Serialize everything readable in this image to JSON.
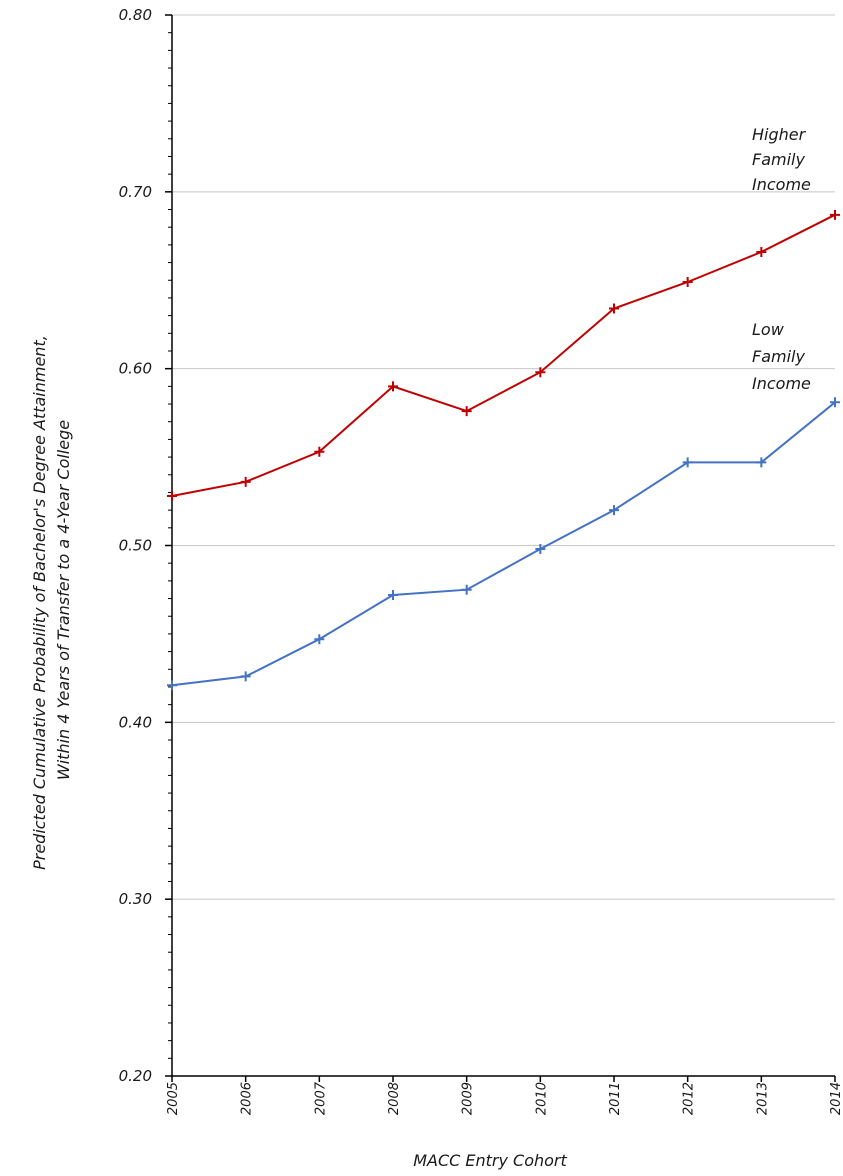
{
  "chart_data": {
    "type": "line",
    "xlabel": "MACC Entry Cohort",
    "ylabel_lines": [
      "Predicted Cumulative Probability of Bachelor's Degree Attainment,",
      "Within 4 Years of Transfer to a 4-Year College"
    ],
    "x": [
      "2005",
      "2006",
      "2007",
      "2008",
      "2009",
      "2010",
      "2011",
      "2012",
      "2013",
      "2014"
    ],
    "yticks": [
      "0.20",
      "0.30",
      "0.40",
      "0.50",
      "0.60",
      "0.70",
      "0.80"
    ],
    "ylim": [
      0.2,
      0.8
    ],
    "grid": true,
    "series": [
      {
        "key": "higher",
        "label_lines": [
          "Higher",
          "Family",
          "Income"
        ],
        "color": "#c00000",
        "values": [
          0.528,
          0.536,
          0.553,
          0.59,
          0.576,
          0.598,
          0.634,
          0.649,
          0.666,
          0.687
        ]
      },
      {
        "key": "low",
        "label_lines": [
          "Low",
          "Family",
          "Income"
        ],
        "color": "#4472c4",
        "values": [
          0.421,
          0.426,
          0.447,
          0.472,
          0.475,
          0.498,
          0.52,
          0.547,
          0.547,
          0.581
        ]
      }
    ]
  }
}
